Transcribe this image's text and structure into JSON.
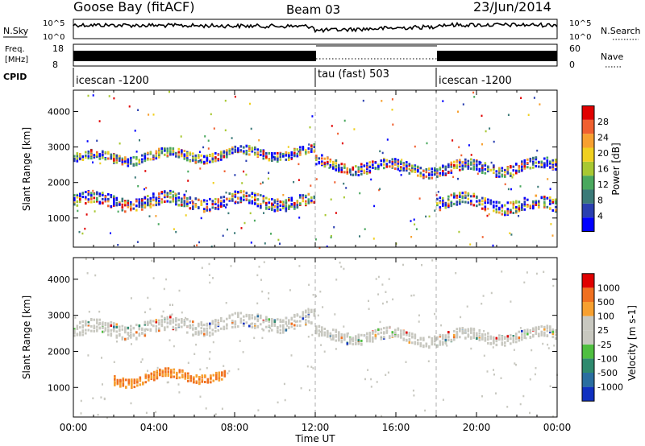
{
  "header": {
    "station": "Goose Bay (fitACF)",
    "beam": "Beam 03",
    "date": "23/Jun/2014"
  },
  "strips": {
    "nsky_label": "N.Sky",
    "nsearch_label": "N.Search",
    "freq_label_top": "Freq.",
    "freq_label_bottom": "[MHz]",
    "nave_label": "Nave",
    "cpid_label": "CPID",
    "noise_ticks_left": [
      "10^5",
      "10^0"
    ],
    "noise_ticks_right": [
      "10^5",
      "10^0"
    ],
    "freq_ticks_left": [
      "18",
      "8"
    ],
    "freq_ticks_right": [
      "60",
      "0"
    ],
    "cpid_segments": [
      {
        "start": 0,
        "end": 12,
        "label": "icescan -1200"
      },
      {
        "start": 12,
        "end": 18,
        "label": "tau (fast) 503"
      },
      {
        "start": 18,
        "end": 24,
        "label": "icescan -1200"
      }
    ]
  },
  "chart_data": [
    {
      "type": "heatmap",
      "panel": "power",
      "ylabel": "Slant Range [km]",
      "xlabel": "Time UT",
      "xlim": [
        0,
        24
      ],
      "ylim": [
        180,
        4600
      ],
      "yticks": [
        "4000",
        "3000",
        "2000",
        "1000"
      ],
      "xticks": [
        "00:00",
        "04:00",
        "08:00",
        "12:00",
        "16:00",
        "20:00",
        "00:00"
      ],
      "colorbar": {
        "label": "Power [dB]",
        "ticks": [
          "28",
          "24",
          "20",
          "16",
          "12",
          "8",
          "4"
        ],
        "colors": [
          "#0000ff",
          "#2a3fb0",
          "#3b7a78",
          "#4aa85e",
          "#a8c832",
          "#f0d020",
          "#f7a030",
          "#f06030",
          "#e00000"
        ]
      },
      "bands": [
        {
          "t0": 0,
          "t1": 12,
          "r_start": 2700,
          "r_end": 2900,
          "width": 250
        },
        {
          "t0": 0,
          "t1": 12,
          "r_start": 1500,
          "r_end": 1500,
          "width": 350
        },
        {
          "t0": 12,
          "t1": 18,
          "r_start": 2550,
          "r_end": 2400,
          "width": 300
        },
        {
          "t0": 18,
          "t1": 24,
          "r_start": 2400,
          "r_end": 2500,
          "width": 300
        },
        {
          "t0": 18,
          "t1": 24,
          "r_start": 1500,
          "r_end": 1350,
          "width": 350
        }
      ]
    },
    {
      "type": "heatmap",
      "panel": "velocity",
      "ylabel": "Slant Range [km]",
      "xlabel": "Time UT",
      "xlim": [
        0,
        24
      ],
      "ylim": [
        180,
        4600
      ],
      "yticks": [
        "4000",
        "3000",
        "2000",
        "1000"
      ],
      "xticks": [
        "00:00",
        "04:00",
        "08:00",
        "12:00",
        "16:00",
        "20:00",
        "00:00"
      ],
      "colorbar": {
        "label": "Velocity [m s-1]",
        "ticks": [
          "1000",
          "500",
          "100",
          "25",
          "-25",
          "-100",
          "-500",
          "-1000"
        ],
        "colors": [
          "#1030c0",
          "#2a6ea0",
          "#2e8a6e",
          "#4fbf40",
          "#c8c8c0",
          "#c8c8c0",
          "#f7a030",
          "#f07020",
          "#e00000"
        ]
      },
      "bands": [
        {
          "t0": 0,
          "t1": 12,
          "r_start": 2600,
          "r_end": 2900,
          "width": 400
        },
        {
          "t0": 2,
          "t1": 7.5,
          "r_start": 1250,
          "r_end": 1400,
          "width": 250
        },
        {
          "t0": 12,
          "t1": 18,
          "r_start": 2500,
          "r_end": 2400,
          "width": 300
        },
        {
          "t0": 18,
          "t1": 24,
          "r_start": 2400,
          "r_end": 2500,
          "width": 300
        }
      ]
    }
  ]
}
